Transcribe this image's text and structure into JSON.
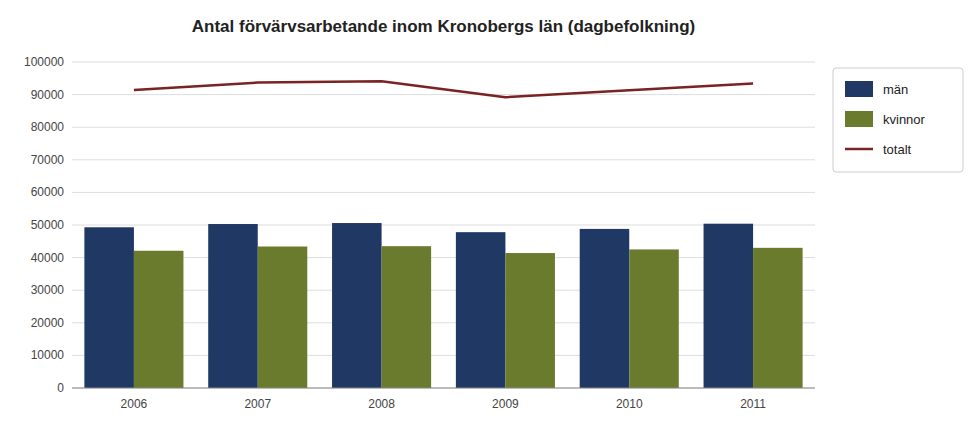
{
  "chart_data": {
    "type": "bar",
    "title": "Antal förvärvsarbetande inom Kronobergs län (dagbefolkning)",
    "categories": [
      "2006",
      "2007",
      "2008",
      "2009",
      "2010",
      "2011"
    ],
    "series": [
      {
        "name": "män",
        "type": "bar",
        "color": "#1F3864",
        "values": [
          49300,
          50300,
          50600,
          47800,
          48800,
          50400
        ]
      },
      {
        "name": "kvinnor",
        "type": "bar",
        "color": "#6B7B2E",
        "values": [
          42100,
          43400,
          43500,
          41400,
          42500,
          43000
        ]
      },
      {
        "name": "totalt",
        "type": "line",
        "color": "#7B2222",
        "values": [
          91400,
          93700,
          94100,
          89200,
          91300,
          93400
        ]
      }
    ],
    "ylim": [
      0,
      100000
    ],
    "yticks": [
      0,
      10000,
      20000,
      30000,
      40000,
      50000,
      60000,
      70000,
      80000,
      90000,
      100000
    ],
    "grid": true,
    "legend": "right"
  }
}
